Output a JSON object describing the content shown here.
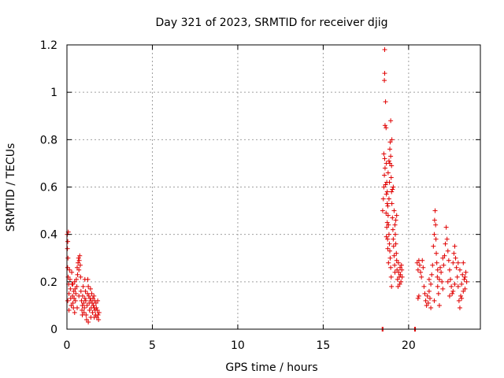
{
  "chart_data": {
    "type": "scatter",
    "title": "Day 321 of 2023, SRMTID for receiver djig",
    "xlabel": "GPS time / hours",
    "ylabel": "SRMTID / TECUs",
    "xlim": [
      0,
      24.2
    ],
    "ylim": [
      0,
      1.2
    ],
    "x_ticks": [
      0,
      5,
      10,
      15,
      20
    ],
    "x_tick_labels": [
      "0",
      "5",
      "10",
      "15",
      "20"
    ],
    "y_ticks": [
      0,
      0.2,
      0.4,
      0.6,
      0.8,
      1.0,
      1.2
    ],
    "y_tick_labels": [
      "0",
      "0.2",
      "0.4",
      "0.6",
      "0.8",
      "1",
      "1.2"
    ],
    "grid": true,
    "marker": "+",
    "series_color": "#e00000",
    "series": [
      {
        "name": "SRMTID",
        "points": [
          [
            0.02,
            0.4
          ],
          [
            0.05,
            0.37
          ],
          [
            0.08,
            0.41
          ],
          [
            0.03,
            0.34
          ],
          [
            0.06,
            0.3
          ],
          [
            0.04,
            0.26
          ],
          [
            0.07,
            0.22
          ],
          [
            0.1,
            0.19
          ],
          [
            0.12,
            0.15
          ],
          [
            0.05,
            0.12
          ],
          [
            0.15,
            0.25
          ],
          [
            0.18,
            0.21
          ],
          [
            0.2,
            0.17
          ],
          [
            0.22,
            0.13
          ],
          [
            0.25,
            0.1
          ],
          [
            0.28,
            0.24
          ],
          [
            0.3,
            0.19
          ],
          [
            0.33,
            0.14
          ],
          [
            0.35,
            0.11
          ],
          [
            0.38,
            0.09
          ],
          [
            0.4,
            0.16
          ],
          [
            0.42,
            0.13
          ],
          [
            0.45,
            0.2
          ],
          [
            0.48,
            0.17
          ],
          [
            0.5,
            0.12
          ],
          [
            0.52,
            0.15
          ],
          [
            0.55,
            0.21
          ],
          [
            0.58,
            0.18
          ],
          [
            0.6,
            0.26
          ],
          [
            0.62,
            0.23
          ],
          [
            0.65,
            0.28
          ],
          [
            0.68,
            0.3
          ],
          [
            0.7,
            0.25
          ],
          [
            0.72,
            0.29
          ],
          [
            0.75,
            0.31
          ],
          [
            0.78,
            0.27
          ],
          [
            0.8,
            0.22
          ],
          [
            0.82,
            0.16
          ],
          [
            0.85,
            0.12
          ],
          [
            0.88,
            0.08
          ],
          [
            0.9,
            0.1
          ],
          [
            0.92,
            0.14
          ],
          [
            0.95,
            0.18
          ],
          [
            0.98,
            0.11
          ],
          [
            1.0,
            0.07
          ],
          [
            1.02,
            0.09
          ],
          [
            1.05,
            0.13
          ],
          [
            1.08,
            0.16
          ],
          [
            1.1,
            0.12
          ],
          [
            1.12,
            0.06
          ],
          [
            1.15,
            0.04
          ],
          [
            1.18,
            0.1
          ],
          [
            1.2,
            0.15
          ],
          [
            1.22,
            0.21
          ],
          [
            1.25,
            0.18
          ],
          [
            1.28,
            0.14
          ],
          [
            1.3,
            0.11
          ],
          [
            1.32,
            0.08
          ],
          [
            1.35,
            0.13
          ],
          [
            1.38,
            0.17
          ],
          [
            1.4,
            0.12
          ],
          [
            1.42,
            0.09
          ],
          [
            1.45,
            0.15
          ],
          [
            1.48,
            0.11
          ],
          [
            1.5,
            0.07
          ],
          [
            1.52,
            0.13
          ],
          [
            1.55,
            0.1
          ],
          [
            1.58,
            0.14
          ],
          [
            1.6,
            0.09
          ],
          [
            1.62,
            0.12
          ],
          [
            1.65,
            0.08
          ],
          [
            1.68,
            0.06
          ],
          [
            1.7,
            0.11
          ],
          [
            1.72,
            0.09
          ],
          [
            1.75,
            0.05
          ],
          [
            1.78,
            0.08
          ],
          [
            1.8,
            0.12
          ],
          [
            1.82,
            0.06
          ],
          [
            1.85,
            0.04
          ],
          [
            1.88,
            0.07
          ],
          [
            0.12,
            0.08
          ],
          [
            0.45,
            0.07
          ],
          [
            0.9,
            0.06
          ],
          [
            1.25,
            0.03
          ],
          [
            1.4,
            0.05
          ],
          [
            0.6,
            0.09
          ],
          [
            1.05,
            0.21
          ],
          [
            0.35,
            0.19
          ],
          [
            0.7,
            0.14
          ],
          [
            1.6,
            0.05
          ],
          [
            18.45,
            0.0
          ],
          [
            18.5,
            0.0
          ],
          [
            18.48,
            0.5
          ],
          [
            18.52,
            0.55
          ],
          [
            18.55,
            0.6
          ],
          [
            18.58,
            0.65
          ],
          [
            18.6,
            0.72
          ],
          [
            18.62,
            0.68
          ],
          [
            18.55,
            0.74
          ],
          [
            18.62,
            0.86
          ],
          [
            18.65,
            0.96
          ],
          [
            18.58,
            1.05
          ],
          [
            18.6,
            1.08
          ],
          [
            18.6,
            1.18
          ],
          [
            18.68,
            0.85
          ],
          [
            18.7,
            0.7
          ],
          [
            18.72,
            0.62
          ],
          [
            18.75,
            0.58
          ],
          [
            18.78,
            0.52
          ],
          [
            18.8,
            0.48
          ],
          [
            18.82,
            0.44
          ],
          [
            18.85,
            0.4
          ],
          [
            18.88,
            0.36
          ],
          [
            18.9,
            0.33
          ],
          [
            18.92,
            0.3
          ],
          [
            18.95,
            0.26
          ],
          [
            18.98,
            0.22
          ],
          [
            19.0,
            0.18
          ],
          [
            18.7,
            0.39
          ],
          [
            18.75,
            0.45
          ],
          [
            18.78,
            0.34
          ],
          [
            18.82,
            0.28
          ],
          [
            18.85,
            0.55
          ],
          [
            18.88,
            0.62
          ],
          [
            18.9,
            0.7
          ],
          [
            18.92,
            0.79
          ],
          [
            18.95,
            0.88
          ],
          [
            18.98,
            0.64
          ],
          [
            19.0,
            0.58
          ],
          [
            19.02,
            0.53
          ],
          [
            19.05,
            0.47
          ],
          [
            19.08,
            0.42
          ],
          [
            19.1,
            0.38
          ],
          [
            19.12,
            0.35
          ],
          [
            19.15,
            0.31
          ],
          [
            19.18,
            0.27
          ],
          [
            19.2,
            0.24
          ],
          [
            19.22,
            0.4
          ],
          [
            19.25,
            0.36
          ],
          [
            19.28,
            0.32
          ],
          [
            19.3,
            0.29
          ],
          [
            19.32,
            0.25
          ],
          [
            19.35,
            0.21
          ],
          [
            19.38,
            0.18
          ],
          [
            19.4,
            0.28
          ],
          [
            19.42,
            0.24
          ],
          [
            19.45,
            0.22
          ],
          [
            19.48,
            0.19
          ],
          [
            19.5,
            0.26
          ],
          [
            19.52,
            0.23
          ],
          [
            19.55,
            0.2
          ],
          [
            19.58,
            0.27
          ],
          [
            19.6,
            0.25
          ],
          [
            19.62,
            0.22
          ],
          [
            19.0,
            0.69
          ],
          [
            18.95,
            0.73
          ],
          [
            19.05,
            0.59
          ],
          [
            19.1,
            0.6
          ],
          [
            19.15,
            0.5
          ],
          [
            19.2,
            0.44
          ],
          [
            19.25,
            0.46
          ],
          [
            19.3,
            0.48
          ],
          [
            18.65,
            0.61
          ],
          [
            18.7,
            0.57
          ],
          [
            18.75,
            0.53
          ],
          [
            18.8,
            0.66
          ],
          [
            18.85,
            0.71
          ],
          [
            18.9,
            0.76
          ],
          [
            19.02,
            0.8
          ],
          [
            18.68,
            0.49
          ],
          [
            18.72,
            0.43
          ],
          [
            18.77,
            0.38
          ],
          [
            20.35,
            0.0
          ],
          [
            20.4,
            0.0
          ],
          [
            20.5,
            0.28
          ],
          [
            20.55,
            0.25
          ],
          [
            20.6,
            0.29
          ],
          [
            20.65,
            0.27
          ],
          [
            20.7,
            0.24
          ],
          [
            20.75,
            0.22
          ],
          [
            20.8,
            0.29
          ],
          [
            20.85,
            0.26
          ],
          [
            20.55,
            0.13
          ],
          [
            20.6,
            0.14
          ],
          [
            20.9,
            0.18
          ],
          [
            20.95,
            0.15
          ],
          [
            21.0,
            0.12
          ],
          [
            21.05,
            0.1
          ],
          [
            21.1,
            0.14
          ],
          [
            21.15,
            0.11
          ],
          [
            21.2,
            0.16
          ],
          [
            21.25,
            0.13
          ],
          [
            21.3,
            0.19
          ],
          [
            21.35,
            0.23
          ],
          [
            21.4,
            0.27
          ],
          [
            21.45,
            0.35
          ],
          [
            21.5,
            0.4
          ],
          [
            21.52,
            0.46
          ],
          [
            21.55,
            0.5
          ],
          [
            21.58,
            0.44
          ],
          [
            21.6,
            0.38
          ],
          [
            21.62,
            0.32
          ],
          [
            21.65,
            0.28
          ],
          [
            21.68,
            0.22
          ],
          [
            21.7,
            0.18
          ],
          [
            21.75,
            0.15
          ],
          [
            21.8,
            0.21
          ],
          [
            21.85,
            0.26
          ],
          [
            21.9,
            0.24
          ],
          [
            21.95,
            0.2
          ],
          [
            22.0,
            0.17
          ],
          [
            22.05,
            0.27
          ],
          [
            22.1,
            0.31
          ],
          [
            22.15,
            0.36
          ],
          [
            22.2,
            0.43
          ],
          [
            22.25,
            0.38
          ],
          [
            22.3,
            0.33
          ],
          [
            22.35,
            0.29
          ],
          [
            22.4,
            0.25
          ],
          [
            22.45,
            0.21
          ],
          [
            22.5,
            0.18
          ],
          [
            22.55,
            0.15
          ],
          [
            22.6,
            0.28
          ],
          [
            22.65,
            0.32
          ],
          [
            22.7,
            0.35
          ],
          [
            22.75,
            0.3
          ],
          [
            22.8,
            0.26
          ],
          [
            22.85,
            0.22
          ],
          [
            22.9,
            0.18
          ],
          [
            22.95,
            0.12
          ],
          [
            23.0,
            0.09
          ],
          [
            23.05,
            0.14
          ],
          [
            23.1,
            0.19
          ],
          [
            23.15,
            0.23
          ],
          [
            23.2,
            0.28
          ],
          [
            23.25,
            0.21
          ],
          [
            23.3,
            0.17
          ],
          [
            23.35,
            0.24
          ],
          [
            23.4,
            0.2
          ],
          [
            21.3,
            0.09
          ],
          [
            21.5,
            0.12
          ],
          [
            21.7,
            0.25
          ],
          [
            22.0,
            0.3
          ],
          [
            22.3,
            0.2
          ],
          [
            22.6,
            0.16
          ],
          [
            22.9,
            0.28
          ],
          [
            23.1,
            0.13
          ],
          [
            23.3,
            0.22
          ],
          [
            21.2,
            0.21
          ],
          [
            21.8,
            0.1
          ],
          [
            22.4,
            0.14
          ],
          [
            22.7,
            0.19
          ],
          [
            23.0,
            0.25
          ],
          [
            23.2,
            0.16
          ]
        ]
      }
    ]
  }
}
